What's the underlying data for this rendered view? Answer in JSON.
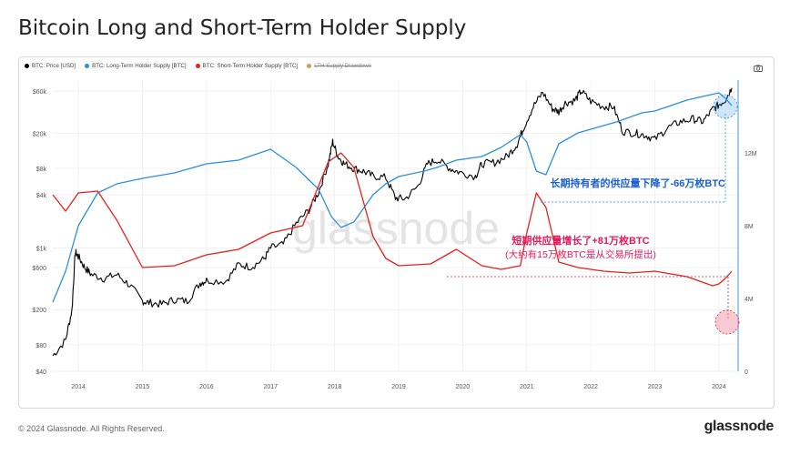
{
  "header": {
    "title": "Bitcoin Long and Short-Term Holder Supply"
  },
  "legend": [
    {
      "label": "BTC: Price [USD]",
      "color": "#000000"
    },
    {
      "label": "BTC: Long-Term Holder Supply [BTC]",
      "color": "#2b8fe0"
    },
    {
      "label": "BTC: Short-Term Holder Supply [BTC]",
      "color": "#e5201f"
    },
    {
      "label": "LTH Supply Drawdown",
      "color": "#c9a34d",
      "disabled": true
    }
  ],
  "watermark": "glassnode",
  "annotations": {
    "lth": "长期持有者的供应量下降了-66万枚BTC",
    "sth_line1": "短期供应量增长了+81万枚BTC",
    "sth_line2": "(大约有15万枚BTC是从交易所提出)"
  },
  "footer": {
    "copyright": "© 2024 Glassnode. All Rights Reserved.",
    "logo": "glassnode"
  },
  "icons": {
    "camera": "camera-icon"
  },
  "chart_data": {
    "type": "line",
    "title": "Bitcoin Long and Short-Term Holder Supply",
    "x_ticks": [
      "2014",
      "2015",
      "2016",
      "2017",
      "2018",
      "2019",
      "2020",
      "2021",
      "2022",
      "2023",
      "2024"
    ],
    "x_range": [
      2013.6,
      2024.3
    ],
    "y_left": {
      "scale": "log",
      "ticks": [
        "$60k",
        "$20k",
        "$8k",
        "$4k",
        "$1k",
        "$600",
        "$200",
        "$80",
        "$40"
      ],
      "values": [
        60000,
        20000,
        8000,
        4000,
        1000,
        600,
        200,
        80,
        40
      ],
      "range": [
        40,
        80000
      ]
    },
    "y_right": {
      "scale": "linear",
      "ticks": [
        "12M",
        "8M",
        "4M",
        "0"
      ],
      "values": [
        12000000,
        8000000,
        4000000,
        0
      ],
      "range": [
        0,
        16000000
      ]
    },
    "grid": true,
    "legend_position": "top-left",
    "series": [
      {
        "name": "BTC: Price [USD]",
        "axis": "left",
        "color": "#000000",
        "x": [
          2013.6,
          2013.8,
          2013.9,
          2013.95,
          2014.0,
          2014.1,
          2014.2,
          2014.4,
          2014.6,
          2014.8,
          2015.0,
          2015.1,
          2015.3,
          2015.5,
          2015.7,
          2015.9,
          2016.0,
          2016.3,
          2016.5,
          2016.7,
          2016.9,
          2017.0,
          2017.2,
          2017.4,
          2017.6,
          2017.75,
          2017.9,
          2017.97,
          2018.05,
          2018.15,
          2018.3,
          2018.45,
          2018.6,
          2018.8,
          2018.95,
          2019.1,
          2019.3,
          2019.45,
          2019.6,
          2019.8,
          2019.95,
          2020.2,
          2020.3,
          2020.5,
          2020.7,
          2020.85,
          2020.95,
          2021.1,
          2021.25,
          2021.4,
          2021.5,
          2021.6,
          2021.75,
          2021.85,
          2022.0,
          2022.2,
          2022.35,
          2022.5,
          2022.7,
          2022.85,
          2023.0,
          2023.2,
          2023.4,
          2023.6,
          2023.75,
          2023.9,
          2024.0,
          2024.1,
          2024.2
        ],
        "y": [
          60,
          90,
          200,
          900,
          800,
          600,
          500,
          450,
          500,
          380,
          250,
          240,
          230,
          260,
          250,
          400,
          430,
          420,
          650,
          610,
          750,
          1000,
          1100,
          1900,
          2700,
          4300,
          9000,
          16000,
          11000,
          9000,
          8000,
          7400,
          6500,
          6300,
          3700,
          3600,
          5000,
          9000,
          10000,
          8000,
          7200,
          6500,
          9000,
          9300,
          11000,
          15000,
          23000,
          40000,
          58000,
          38000,
          35000,
          44000,
          47000,
          60000,
          46000,
          40000,
          40000,
          21000,
          20000,
          19000,
          17000,
          23000,
          27000,
          29000,
          27000,
          37000,
          42000,
          48000,
          65000
        ]
      },
      {
        "name": "BTC: Long-Term Holder Supply [BTC]",
        "axis": "right",
        "color": "#2b8fe0",
        "x": [
          2013.6,
          2013.8,
          2014.0,
          2014.3,
          2014.6,
          2015.0,
          2015.5,
          2016.0,
          2016.5,
          2017.0,
          2017.4,
          2017.75,
          2017.95,
          2018.1,
          2018.3,
          2018.6,
          2018.8,
          2019.0,
          2019.4,
          2019.6,
          2019.9,
          2020.3,
          2020.6,
          2020.9,
          2021.0,
          2021.15,
          2021.3,
          2021.5,
          2021.8,
          2022.0,
          2022.4,
          2022.8,
          2023.0,
          2023.5,
          2024.0,
          2024.1,
          2024.2
        ],
        "y": [
          3800000,
          5500000,
          8000000,
          9800000,
          10300000,
          10600000,
          10900000,
          11400000,
          11600000,
          12200000,
          11200000,
          10000000,
          8500000,
          7900000,
          8200000,
          9700000,
          10300000,
          10700000,
          11000000,
          11200000,
          11600000,
          11800000,
          12300000,
          13000000,
          12600000,
          11000000,
          10800000,
          12500000,
          13100000,
          13300000,
          13700000,
          14200000,
          14300000,
          14900000,
          15300000,
          15000000,
          14600000
        ]
      },
      {
        "name": "BTC: Short-Term Holder Supply [BTC]",
        "axis": "right",
        "color": "#e5201f",
        "x": [
          2013.6,
          2013.8,
          2014.0,
          2014.3,
          2014.6,
          2015.0,
          2015.5,
          2016.0,
          2016.5,
          2017.0,
          2017.5,
          2017.9,
          2018.1,
          2018.3,
          2018.6,
          2018.8,
          2019.0,
          2019.5,
          2019.9,
          2020.3,
          2020.6,
          2020.9,
          2021.0,
          2021.15,
          2021.3,
          2021.5,
          2021.8,
          2022.2,
          2022.6,
          2023.0,
          2023.5,
          2023.9,
          2024.0,
          2024.1,
          2024.2
        ],
        "y": [
          9700000,
          8800000,
          9800000,
          9900000,
          8300000,
          5700000,
          5800000,
          6400000,
          6700000,
          7600000,
          8000000,
          11500000,
          12000000,
          11200000,
          7400000,
          6200000,
          5800000,
          5900000,
          6700000,
          5800000,
          5600000,
          5800000,
          7600000,
          9800000,
          9000000,
          6000000,
          5700000,
          5500000,
          5400000,
          5500000,
          5200000,
          4700000,
          4800000,
          5100000,
          5500000
        ]
      }
    ]
  }
}
